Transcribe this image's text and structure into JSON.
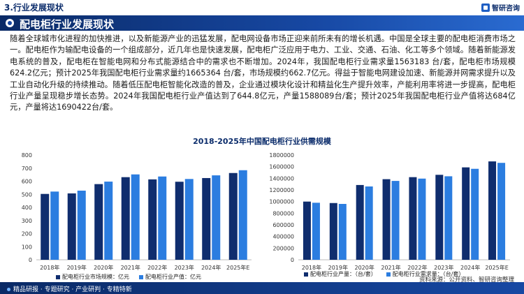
{
  "header": {
    "section_title": "3.行业发展现状",
    "logo_text": "智研咨询"
  },
  "main": {
    "title": "配电柜行业发展现状",
    "paragraph": "随着全球城市化进程的加快推进，以及新能源产业的迅猛发展，配电网设备市场正迎来前所未有的增长机遇。中国是全球主要的配电柜消费市场之一。配电柜作为输配电设备的一个组成部分，近几年也是快速发展，配电柜广泛应用于电力、工业、交通、石油、化工等多个领域。随着新能源发电系统的普及，配电柜在智能电网和分布式能源结合中的需求也不断增加。2024年，我国配电柜行业需求量1563183 台/套，配电柜市场规模624.2亿元；预计2025年我国配电柜行业需求量约1665364 台/套，市场规模约662.7亿元。得益于智能电网建设加速、新能源并网需求提升以及工业自动化升级的持续推动。随着低压配电柜智能化改造的普及，企业通过模块化设计和精益化生产提升效率，产能利用率将进一步提高，配电柜行业产量呈现稳步增长态势。2024年我国配电柜行业产值达到了644.8亿元，产量1588089台/套；预计2025年我国配电柜行业产值将达684亿元，产量将达1690422台/套。",
    "chart_title": "2018-2025年中国配电柜行业供需规模"
  },
  "chart_data": [
    {
      "type": "bar",
      "categories": [
        "2018年",
        "2019年",
        "2020年",
        "2021年",
        "2022年",
        "2023年",
        "2024年",
        "2025年E"
      ],
      "series": [
        {
          "name": "配电柜行业市场规模：亿元",
          "color": "#0f2d6e",
          "values": [
            503,
            507,
            578,
            631,
            614,
            596,
            624.2,
            662.7
          ]
        },
        {
          "name": "配电柜行业产值：亿元",
          "color": "#2b7de0",
          "values": [
            521,
            528,
            597,
            652,
            636,
            617,
            644.8,
            684
          ]
        }
      ],
      "yticks": [
        "0",
        "100",
        "200",
        "300",
        "400",
        "500",
        "600",
        "700",
        "800"
      ],
      "ylim": [
        0,
        800
      ]
    },
    {
      "type": "bar",
      "categories": [
        "2018年",
        "2019年",
        "2020年",
        "2021年",
        "2022年",
        "2023年",
        "2024年",
        "2025年E"
      ],
      "series": [
        {
          "name": "配电柜行业产量：（台/套）",
          "color": "#0f2d6e",
          "values": [
            1000000,
            975000,
            1285000,
            1385000,
            1420000,
            1460000,
            1588089,
            1690422
          ]
        },
        {
          "name": "配电柜行业需求量：（台/套）",
          "color": "#2b7de0",
          "values": [
            980000,
            960000,
            1260000,
            1355000,
            1395000,
            1435000,
            1563183,
            1665364
          ]
        }
      ],
      "yticks": [
        "0",
        "200000",
        "400000",
        "600000",
        "800000",
        "1000000",
        "1200000",
        "1400000",
        "1600000",
        "1800000"
      ],
      "ylim": [
        0,
        1800000
      ]
    }
  ],
  "footer": {
    "slogan": "精品研报 · 专题研究 · 产业研判 · 专精特新",
    "source": "资料来源：公开资料、智研咨询整理"
  }
}
